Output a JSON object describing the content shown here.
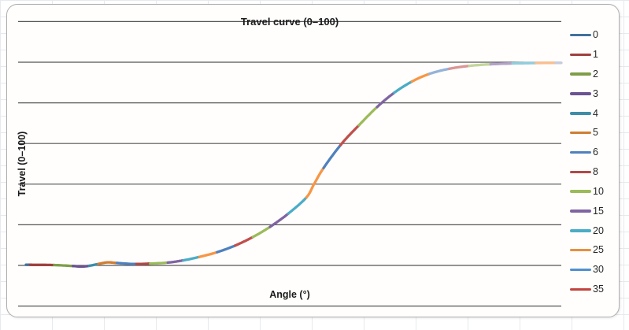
{
  "chart": {
    "title": "Travel curve (0–100)",
    "x_axis_label": "Angle (°)",
    "y_axis_label": "Travel (0–100)",
    "legend_items": [
      {
        "label": "0",
        "color": "#41719C"
      },
      {
        "label": "1",
        "color": "#9E413E"
      },
      {
        "label": "2",
        "color": "#7E9D49"
      },
      {
        "label": "3",
        "color": "#6A5390"
      },
      {
        "label": "4",
        "color": "#3D8DA8"
      },
      {
        "label": "5",
        "color": "#CE7E33"
      },
      {
        "label": "6",
        "color": "#4F81BD"
      },
      {
        "label": "8",
        "color": "#B04A46"
      },
      {
        "label": "10",
        "color": "#9BBB59"
      },
      {
        "label": "15",
        "color": "#8064A2"
      },
      {
        "label": "20",
        "color": "#4BACC6"
      },
      {
        "label": "25",
        "color": "#E89040"
      },
      {
        "label": "30",
        "color": "#5090CE"
      },
      {
        "label": "35",
        "color": "#C2443E"
      }
    ]
  },
  "chart_data": {
    "type": "line",
    "title": "Travel curve (0–100)",
    "xlabel": "Angle (°)",
    "ylabel": "Travel (0–100)",
    "ylim": [
      -20,
      120
    ],
    "y_gridline_values": [
      -20,
      0,
      20,
      40,
      60,
      80,
      100,
      120
    ],
    "axis_tick_labels_visible": false,
    "legend_position": "right",
    "x_units": "normalized 0–1 across plot width (no tick labels shown in chart)",
    "curve_points": [
      [
        0.0,
        0.3
      ],
      [
        0.05,
        0.2
      ],
      [
        0.088,
        -0.3
      ],
      [
        0.103,
        -0.6
      ],
      [
        0.118,
        -0.2
      ],
      [
        0.135,
        0.7
      ],
      [
        0.152,
        1.5
      ],
      [
        0.17,
        1.2
      ],
      [
        0.2,
        0.7
      ],
      [
        0.232,
        0.9
      ],
      [
        0.265,
        1.4
      ],
      [
        0.294,
        2.5
      ],
      [
        0.324,
        4.2
      ],
      [
        0.357,
        6.5
      ],
      [
        0.391,
        9.8
      ],
      [
        0.424,
        14.0
      ],
      [
        0.456,
        19.0
      ],
      [
        0.49,
        25.5
      ],
      [
        0.524,
        33.5
      ],
      [
        0.538,
        40.0
      ],
      [
        0.556,
        48.0
      ],
      [
        0.59,
        60.0
      ],
      [
        0.622,
        69.0
      ],
      [
        0.656,
        78.0
      ],
      [
        0.688,
        85.0
      ],
      [
        0.721,
        90.5
      ],
      [
        0.754,
        94.3
      ],
      [
        0.791,
        96.8
      ],
      [
        0.828,
        98.2
      ],
      [
        0.868,
        99.0
      ],
      [
        0.909,
        99.4
      ],
      [
        0.953,
        99.6
      ],
      [
        1.0,
        99.7
      ]
    ],
    "segments": [
      [
        0.0,
        "#41719C"
      ],
      [
        0.009,
        "#9E413E"
      ],
      [
        0.053,
        "#7E9D49"
      ],
      [
        0.088,
        "#6A5390"
      ],
      [
        0.118,
        "#3D8DA8"
      ],
      [
        0.135,
        "#D07E34"
      ],
      [
        0.171,
        "#4F81BD"
      ],
      [
        0.206,
        "#B04A46"
      ],
      [
        0.232,
        "#9BBB59"
      ],
      [
        0.265,
        "#8064A2"
      ],
      [
        0.294,
        "#4BACC6"
      ],
      [
        0.324,
        "#F79646"
      ],
      [
        0.357,
        "#4F81BD"
      ],
      [
        0.391,
        "#C0504D"
      ],
      [
        0.424,
        "#9BBB59"
      ],
      [
        0.456,
        "#8064A2"
      ],
      [
        0.49,
        "#4BACC6"
      ],
      [
        0.524,
        "#F79646"
      ],
      [
        0.556,
        "#4F81BD"
      ],
      [
        0.588,
        "#C0504D"
      ],
      [
        0.622,
        "#9BBB59"
      ],
      [
        0.656,
        "#8064A2"
      ],
      [
        0.688,
        "#4BACC6"
      ],
      [
        0.721,
        "#F79646"
      ],
      [
        0.754,
        "#95B3D7"
      ],
      [
        0.791,
        "#D99694"
      ],
      [
        0.828,
        "#C3D69B"
      ],
      [
        0.868,
        "#B3A2C7"
      ],
      [
        0.909,
        "#92CDDC"
      ],
      [
        0.953,
        "#FABF8F"
      ],
      [
        0.991,
        "#C6CCDE"
      ]
    ]
  }
}
